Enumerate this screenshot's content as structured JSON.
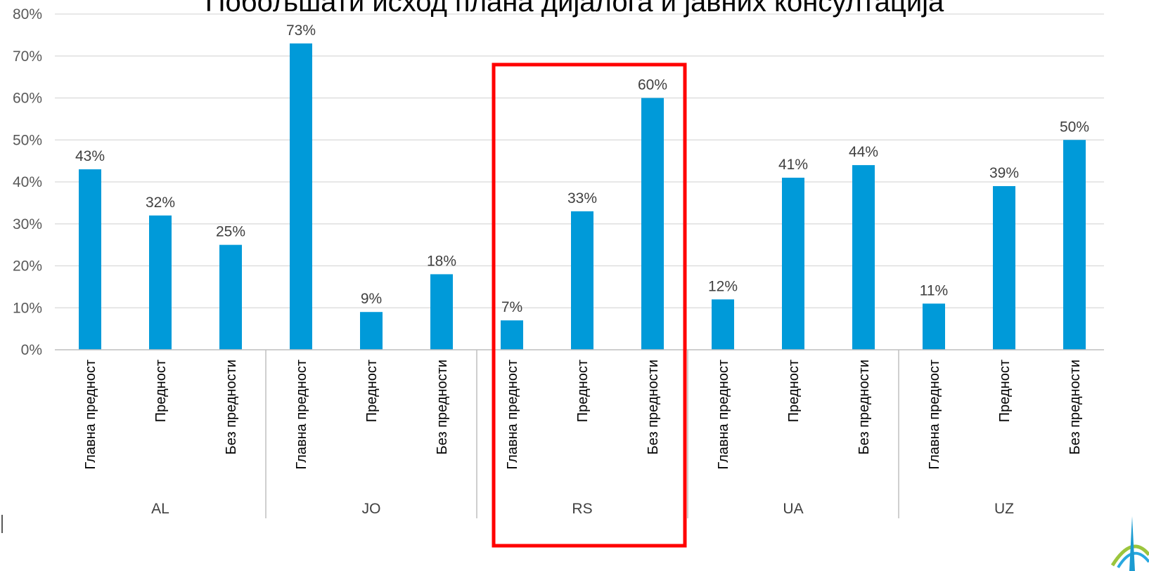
{
  "chart_data": {
    "type": "bar",
    "title": "Побољшати исход плана дијалога и јавних консултација",
    "ylim": [
      0,
      80
    ],
    "y_ticks": [
      "0%",
      "10%",
      "20%",
      "30%",
      "40%",
      "50%",
      "60%",
      "70%",
      "80%"
    ],
    "grid": true,
    "legend": "none",
    "bar_color": "#009ad9",
    "highlight_color": "#ff0000",
    "highlight_group": "RS",
    "groups": [
      {
        "name": "AL",
        "categories": [
          "Главна предност",
          "Предност",
          "Без предности"
        ],
        "values": [
          43,
          32,
          25
        ],
        "labels": [
          "43%",
          "32%",
          "25%"
        ]
      },
      {
        "name": "JO",
        "categories": [
          "Главна предност",
          "Предност",
          "Без предности"
        ],
        "values": [
          73,
          9,
          18
        ],
        "labels": [
          "73%",
          "9%",
          "18%"
        ]
      },
      {
        "name": "RS",
        "categories": [
          "Главна предност",
          "Предност",
          "Без предности"
        ],
        "values": [
          7,
          33,
          60
        ],
        "labels": [
          "7%",
          "33%",
          "60%"
        ]
      },
      {
        "name": "UA",
        "categories": [
          "Главна предност",
          "Предност",
          "Без предности"
        ],
        "values": [
          12,
          41,
          44
        ],
        "labels": [
          "12%",
          "41%",
          "44%"
        ]
      },
      {
        "name": "UZ",
        "categories": [
          "Главна предност",
          "Предност",
          "Без предности"
        ],
        "values": [
          11,
          39,
          50
        ],
        "labels": [
          "11%",
          "39%",
          "50%"
        ]
      }
    ]
  }
}
